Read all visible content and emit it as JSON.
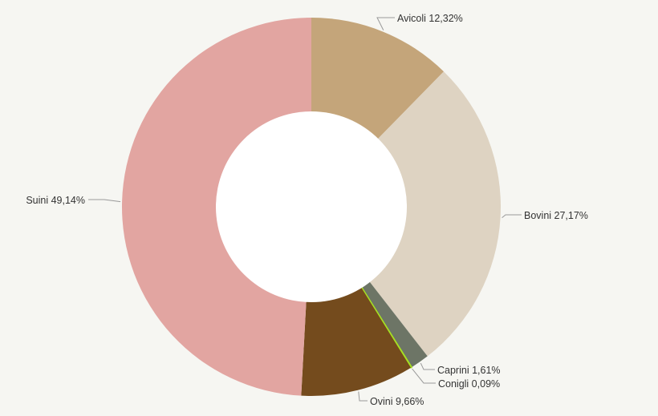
{
  "chart_data": {
    "type": "pie",
    "variant": "donut",
    "title": "",
    "legend": "none",
    "slices": [
      {
        "label": "Avicoli 12,32%",
        "name": "Avicoli",
        "value": 12.32,
        "color": "#c4a57a"
      },
      {
        "label": "Bovini 27,17%",
        "name": "Bovini",
        "value": 27.17,
        "color": "#ded3c2"
      },
      {
        "label": "Caprini 1,61%",
        "name": "Caprini",
        "value": 1.61,
        "color": "#6d7566"
      },
      {
        "label": "Conigli 0,09%",
        "name": "Conigli",
        "value": 0.09,
        "color": "#a6e022"
      },
      {
        "label": "Ovini 9,66%",
        "name": "Ovini",
        "value": 9.66,
        "color": "#744b1d"
      },
      {
        "label": "Suini 49,14%",
        "name": "Suini",
        "value": 49.14,
        "color": "#e2a5a1"
      }
    ]
  }
}
